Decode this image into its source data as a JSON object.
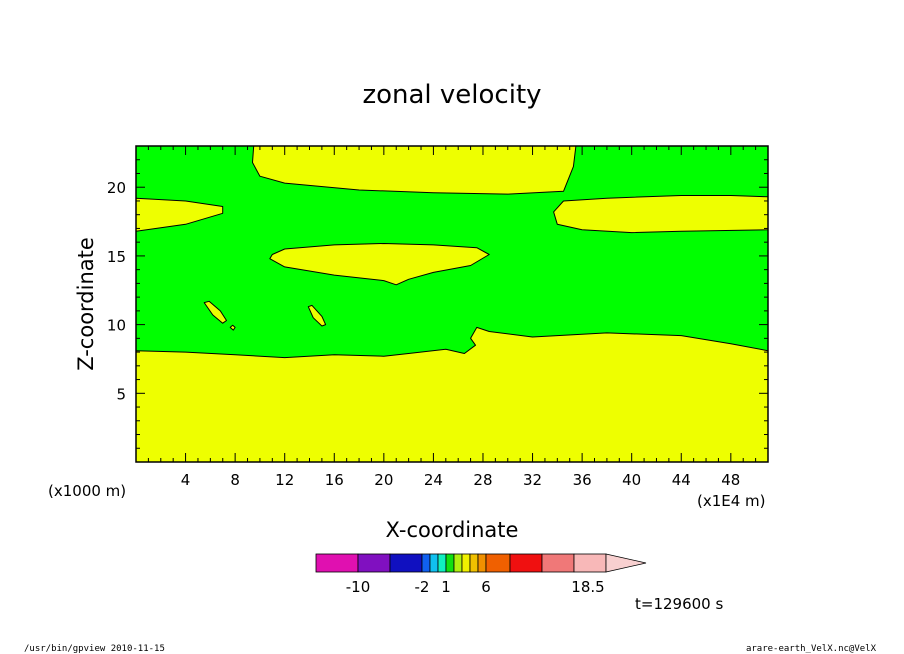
{
  "chart_data": {
    "type": "contour",
    "title": "zonal velocity",
    "xlabel": "X-coordinate",
    "ylabel": "Z-coordinate",
    "x_unit": "(x1E4 m)",
    "y_unit": "(x1000 m)",
    "xlim": [
      0,
      51
    ],
    "ylim": [
      0,
      23
    ],
    "xticks": [
      "4",
      "8",
      "12",
      "16",
      "20",
      "24",
      "28",
      "32",
      "36",
      "40",
      "44",
      "48"
    ],
    "yticks": [
      "5",
      "10",
      "15",
      "20"
    ],
    "time_label": "t=129600 s",
    "colorbar": {
      "colors": [
        "#e010b0",
        "#8010c0",
        "#1010c0",
        "#1060f0",
        "#10c0f0",
        "#10f0c0",
        "#10e010",
        "#b0f010",
        "#f0f000",
        "#f0c000",
        "#f09000",
        "#f06000",
        "#f01010",
        "#f07878",
        "#f8b8b8",
        "#f8d0d0"
      ],
      "tick_labels": [
        "-10",
        "-2",
        "1",
        "6",
        "18.5"
      ]
    },
    "regions": [
      {
        "color": "#eeff00",
        "description": "lower layer below about z=8",
        "polygon": [
          [
            0,
            0
          ],
          [
            51,
            0
          ],
          [
            51,
            8.1
          ],
          [
            48,
            8.6
          ],
          [
            44,
            9.2
          ],
          [
            38,
            9.4
          ],
          [
            32,
            9.1
          ],
          [
            28.5,
            9.5
          ],
          [
            27.5,
            9.8
          ],
          [
            27,
            9.0
          ],
          [
            27.4,
            8.5
          ],
          [
            26.5,
            7.9
          ],
          [
            25,
            8.2
          ],
          [
            22,
            7.9
          ],
          [
            20,
            7.7
          ],
          [
            16,
            7.8
          ],
          [
            12,
            7.6
          ],
          [
            8,
            7.8
          ],
          [
            4,
            8.0
          ],
          [
            0,
            8.1
          ]
        ]
      },
      {
        "color": "#eeff00",
        "description": "upper-centre region reaching top",
        "polygon": [
          [
            9.5,
            23
          ],
          [
            35.5,
            23
          ],
          [
            35.3,
            21.5
          ],
          [
            34.5,
            19.7
          ],
          [
            30,
            19.5
          ],
          [
            24,
            19.6
          ],
          [
            18,
            19.8
          ],
          [
            12,
            20.3
          ],
          [
            10,
            20.8
          ],
          [
            9.4,
            21.8
          ]
        ]
      },
      {
        "color": "#eeff00",
        "description": "left band near z=17-19",
        "polygon": [
          [
            0,
            19.2
          ],
          [
            4,
            19.0
          ],
          [
            7,
            18.6
          ],
          [
            7,
            18.1
          ],
          [
            4,
            17.3
          ],
          [
            0,
            16.8
          ]
        ]
      },
      {
        "color": "#eeff00",
        "description": "right band near z=17-19",
        "polygon": [
          [
            51,
            19.3
          ],
          [
            48,
            19.4
          ],
          [
            44,
            19.4
          ],
          [
            38,
            19.2
          ],
          [
            34.5,
            19.0
          ],
          [
            33.7,
            18.2
          ],
          [
            34,
            17.3
          ],
          [
            36,
            16.9
          ],
          [
            40,
            16.7
          ],
          [
            44,
            16.8
          ],
          [
            51,
            16.9
          ]
        ]
      },
      {
        "color": "#eeff00",
        "description": "middle lens near z=13-16",
        "polygon": [
          [
            11,
            15.1
          ],
          [
            12,
            15.5
          ],
          [
            16,
            15.8
          ],
          [
            20,
            15.9
          ],
          [
            24,
            15.8
          ],
          [
            27.5,
            15.6
          ],
          [
            28.5,
            15.1
          ],
          [
            27,
            14.3
          ],
          [
            24,
            13.8
          ],
          [
            22,
            13.3
          ],
          [
            21,
            12.9
          ],
          [
            20,
            13.2
          ],
          [
            16,
            13.6
          ],
          [
            12,
            14.2
          ],
          [
            10.8,
            14.8
          ]
        ]
      },
      {
        "color": "#eeff00",
        "description": "small blob near x=6.5,z=11",
        "polygon": [
          [
            5.5,
            11.6
          ],
          [
            5.9,
            11.7
          ],
          [
            6.8,
            11.0
          ],
          [
            7.3,
            10.3
          ],
          [
            7.0,
            10.1
          ],
          [
            6.2,
            10.7
          ]
        ]
      },
      {
        "color": "#eeff00",
        "description": "small blob near x=7.8,z=9.7",
        "polygon": [
          [
            7.6,
            9.8
          ],
          [
            7.8,
            9.95
          ],
          [
            8.0,
            9.8
          ],
          [
            7.85,
            9.6
          ]
        ]
      },
      {
        "color": "#eeff00",
        "description": "small blob near x=14.5,z=10.6",
        "polygon": [
          [
            13.9,
            11.3
          ],
          [
            14.2,
            11.4
          ],
          [
            15.0,
            10.6
          ],
          [
            15.3,
            10.0
          ],
          [
            15.0,
            9.9
          ],
          [
            14.3,
            10.5
          ]
        ]
      }
    ],
    "background_color": "#00ff00",
    "footer_left": "/usr/bin/gpview   2010-11-15",
    "footer_right": "arare-earth_VelX.nc@VelX"
  }
}
